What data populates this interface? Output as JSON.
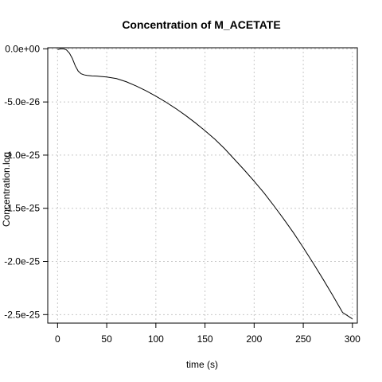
{
  "chart_data": {
    "type": "line",
    "title": "Concentration of M_ACETATE",
    "xlabel": "time (s)",
    "ylabel": "Concentration.log",
    "xlim": [
      -10,
      305
    ],
    "ylim": [
      -2.58e-25,
      1e-27
    ],
    "x_ticks": [
      {
        "value": 0,
        "label": "0"
      },
      {
        "value": 50,
        "label": "50"
      },
      {
        "value": 100,
        "label": "100"
      },
      {
        "value": 150,
        "label": "150"
      },
      {
        "value": 200,
        "label": "200"
      },
      {
        "value": 250,
        "label": "250"
      },
      {
        "value": 300,
        "label": "300"
      }
    ],
    "y_ticks": [
      {
        "value": 0,
        "label": "0.0e+00"
      },
      {
        "value": -5e-26,
        "label": "-5.0e-26"
      },
      {
        "value": -1e-25,
        "label": "-1.0e-25"
      },
      {
        "value": -1.5e-25,
        "label": "-1.5e-25"
      },
      {
        "value": -2e-25,
        "label": "-2.0e-25"
      },
      {
        "value": -2.5e-25,
        "label": "-2.5e-25"
      }
    ],
    "grid": true,
    "series": [
      {
        "color": "#000000",
        "x": [
          0,
          3,
          6,
          9,
          12,
          15,
          18,
          21,
          24,
          27,
          30,
          35,
          40,
          50,
          60,
          70,
          80,
          90,
          100,
          110,
          120,
          130,
          140,
          150,
          160,
          170,
          180,
          190,
          200,
          210,
          220,
          230,
          240,
          250,
          260,
          270,
          280,
          290,
          300
        ],
        "y": [
          -7e-28,
          0.0,
          0.0,
          -1e-27,
          -4e-27,
          -9e-27,
          -1.6e-26,
          -2.1e-26,
          -2.35e-26,
          -2.45e-26,
          -2.5e-26,
          -2.55e-26,
          -2.57e-26,
          -2.65e-26,
          -2.8e-26,
          -3.1e-26,
          -3.5e-26,
          -3.95e-26,
          -4.45e-26,
          -5e-26,
          -5.6e-26,
          -6.25e-26,
          -6.95e-26,
          -7.7e-26,
          -8.5e-26,
          -9.4e-26,
          -1.04e-25,
          -1.14e-25,
          -1.245e-25,
          -1.355e-25,
          -1.475e-25,
          -1.6e-25,
          -1.73e-25,
          -1.87e-25,
          -2.015e-25,
          -2.165e-25,
          -2.32e-25,
          -2.48e-25,
          -2.54e-25
        ]
      }
    ]
  }
}
